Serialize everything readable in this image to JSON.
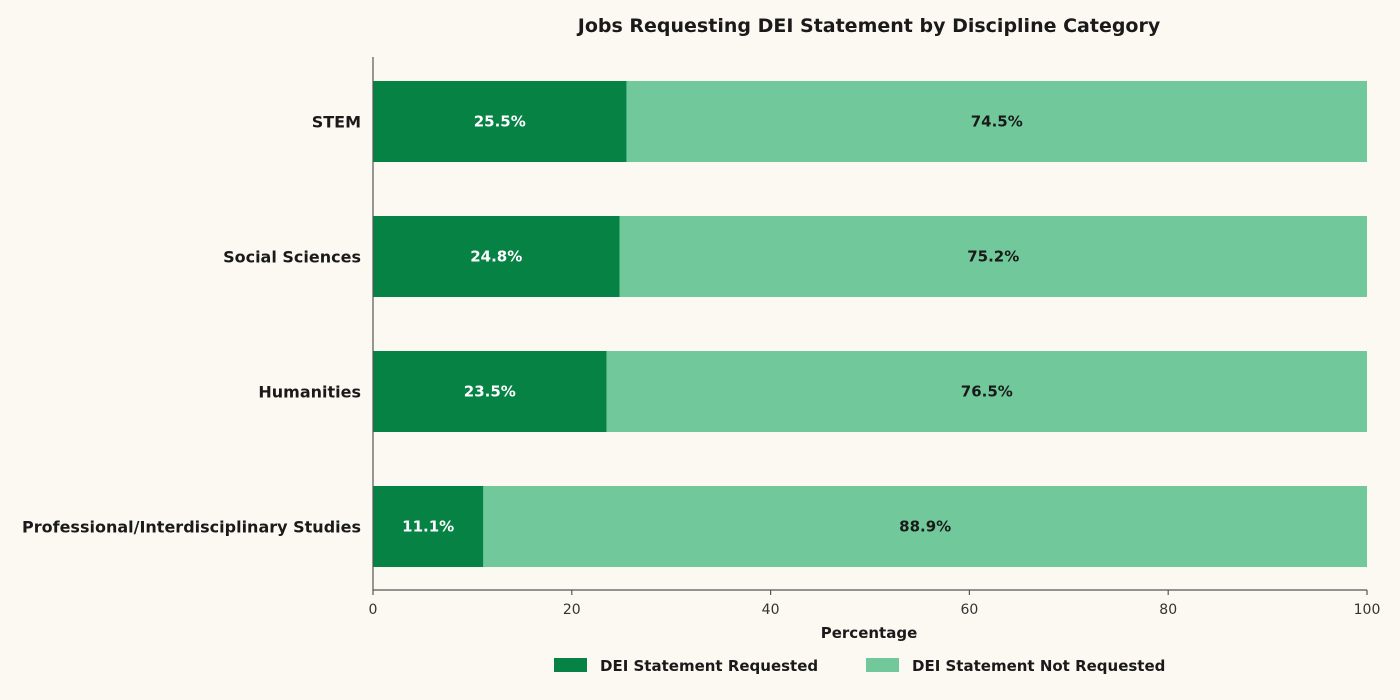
{
  "chart_data": {
    "type": "bar",
    "orientation": "horizontal",
    "stacked": true,
    "title": "Jobs Requesting DEI Statement by Discipline Category",
    "xlabel": "Percentage",
    "ylabel": "",
    "xlim": [
      0,
      100
    ],
    "xticks": [
      "0",
      "20",
      "40",
      "60",
      "80",
      "100"
    ],
    "categories": [
      "STEM",
      "Social Sciences",
      "Humanities",
      "Professional/Interdisciplinary Studies"
    ],
    "series": [
      {
        "name": "DEI Statement Requested",
        "color": "#058244",
        "label_color": "#ffffff",
        "values": [
          25.5,
          24.8,
          23.5,
          11.1
        ],
        "labels": [
          "25.5%",
          "24.8%",
          "23.5%",
          "11.1%"
        ]
      },
      {
        "name": "DEI Statement Not Requested",
        "color": "#71c99b",
        "label_color": "#1a1a1a",
        "values": [
          74.5,
          75.2,
          76.5,
          88.9
        ],
        "labels": [
          "74.5%",
          "75.2%",
          "76.5%",
          "88.9%"
        ]
      }
    ],
    "grid": false,
    "legend_position": "bottom-center"
  }
}
